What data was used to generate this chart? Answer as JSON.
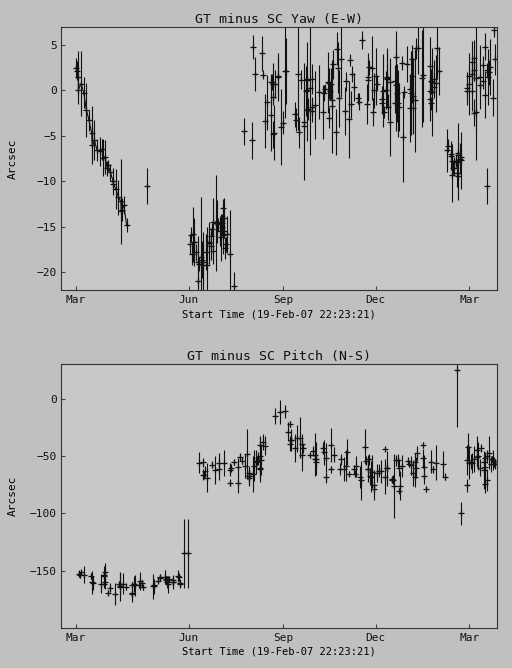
{
  "fig_width": 5.12,
  "fig_height": 6.68,
  "dpi": 100,
  "bg_color": "#c0c0c0",
  "plot_bg_color": "#c8c8c8",
  "title1": "GT minus SC Yaw (E-W)",
  "title2": "GT minus SC Pitch (N-S)",
  "xlabel": "Start Time (19-Feb-07 22:23:21)",
  "ylabel": "Arcsec",
  "xtick_labels": [
    "Mar",
    "Jun",
    "Sep",
    "Dec",
    "Mar"
  ],
  "plot1_ylim": [
    -22,
    7
  ],
  "plot1_yticks": [
    -20,
    -15,
    -10,
    -5,
    0,
    5
  ],
  "plot2_ylim": [
    -200,
    30
  ],
  "plot2_yticks": [
    -150,
    -100,
    -50,
    0
  ],
  "line_color": "#111111",
  "marker": "+",
  "markersize": 4,
  "linewidth": 0.8,
  "seed": 99
}
